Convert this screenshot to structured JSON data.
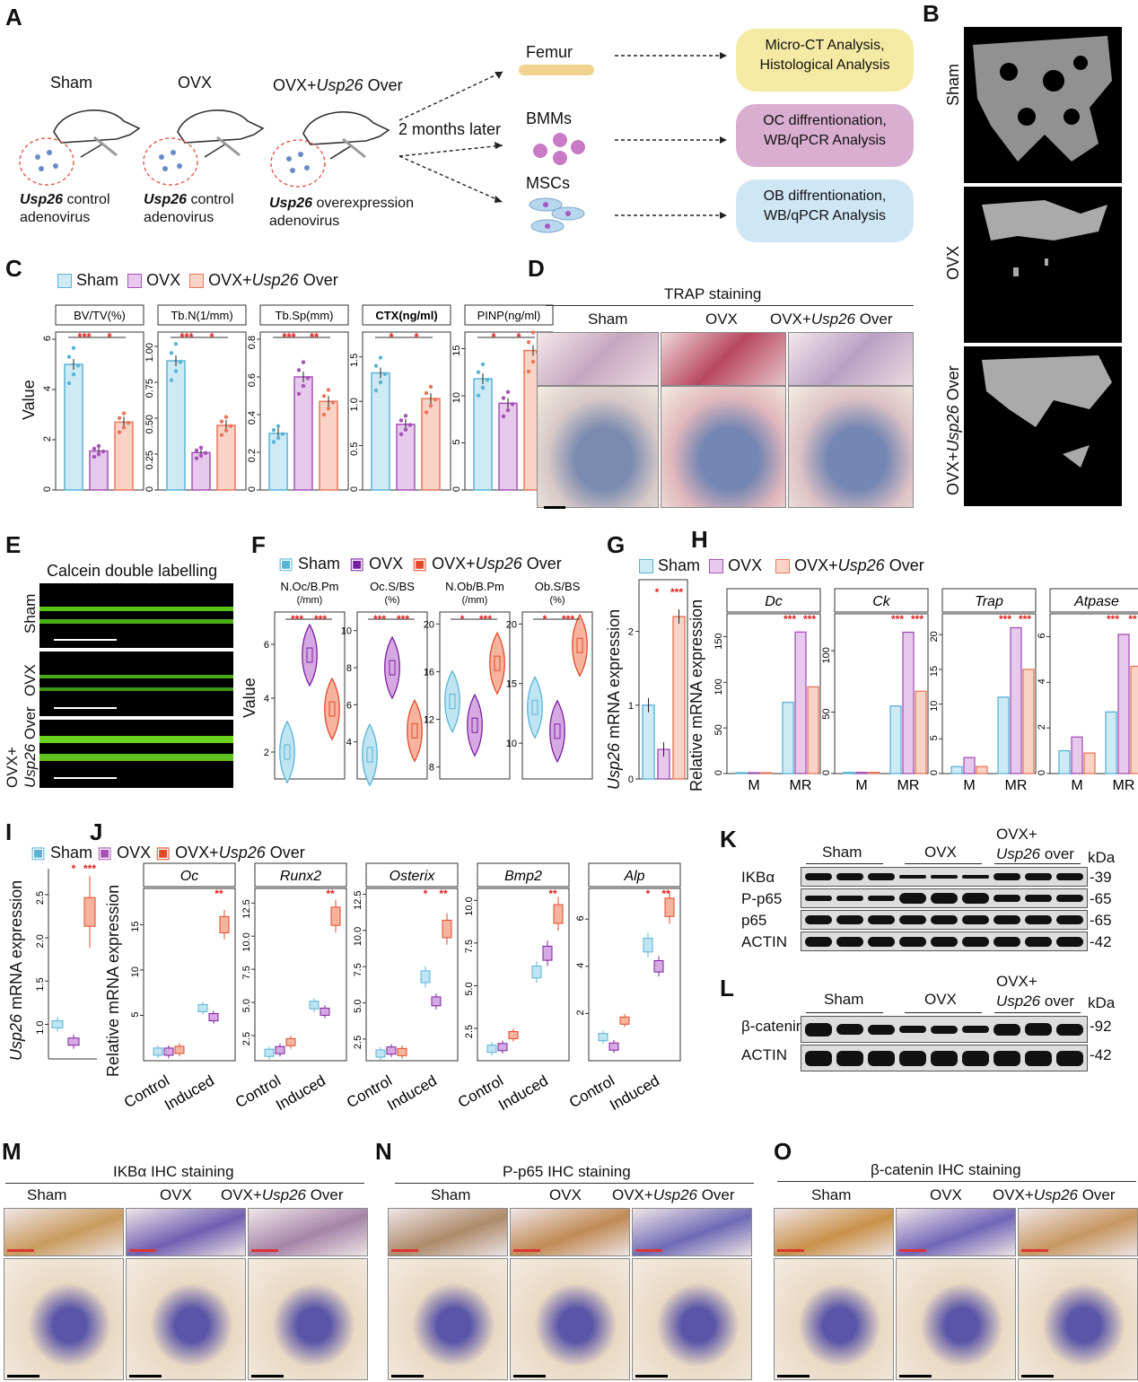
{
  "panel_letters": [
    "A",
    "B",
    "C",
    "D",
    "E",
    "F",
    "G",
    "H",
    "I",
    "J",
    "K",
    "L",
    "M",
    "N",
    "O"
  ],
  "A": {
    "groups": [
      "Sham",
      "OVX",
      "OVX+"
    ],
    "group3_gene": "Usp26",
    "group3_suffix": " Over",
    "adeno_gene": "Usp26",
    "adeno_labels": [
      " control",
      " control",
      " overexpression"
    ],
    "adeno_word": "adenovirus",
    "arrow_text": "2 months later",
    "targets": [
      "Femur",
      "BMMs",
      "MSCs"
    ],
    "outcomes": [
      [
        "Micro-CT Analysis,",
        "Histological Analysis"
      ],
      [
        "OC diffrentionation,",
        "WB/qPCR Analysis"
      ],
      [
        "OB diffrentionation,",
        "WB/qPCR Analysis"
      ]
    ],
    "colors": {
      "yellow": "#f5eaa4",
      "purple": "#d9aed0",
      "blue": "#cfe6f5"
    }
  },
  "B": {
    "labels": [
      "Sham",
      "OVX",
      "OVX+",
      "Usp26",
      " Over"
    ]
  },
  "C": {
    "legend": [
      "Sham",
      "OVX",
      "OVX+",
      "Usp26",
      " Over"
    ],
    "ylabel": "Value",
    "colors": {
      "sham": "#5ab4d6",
      "ovx": "#a552b5",
      "over": "#e8775a",
      "sham_fill": "#cdeaf5",
      "ovx_fill": "#e6c9ec",
      "over_fill": "#f9d3c6"
    },
    "chart_data": [
      {
        "type": "bar",
        "title": "BV/TV(%)",
        "categories": [
          "Sham",
          "OVX",
          "OVX+Usp26 Over"
        ],
        "values": [
          5.0,
          1.55,
          2.7
        ],
        "yticks": [
          "0",
          "2",
          "4",
          "6"
        ],
        "ylim": [
          0,
          6
        ],
        "sig": [
          "***",
          "*"
        ]
      },
      {
        "type": "bar",
        "title": "Tb.N(1/mm)",
        "categories": [
          "Sham",
          "OVX",
          "OVX+Usp26 Over"
        ],
        "values": [
          0.9,
          0.26,
          0.45
        ],
        "yticks": [
          "0",
          "0.25",
          "0.50",
          "0.75",
          "1.00"
        ],
        "ylim": [
          0,
          1.05
        ],
        "sig": [
          "***",
          "*"
        ]
      },
      {
        "type": "bar",
        "title": "Tb.Sp(mm)",
        "categories": [
          "Sham",
          "OVX",
          "OVX+Usp26 Over"
        ],
        "values": [
          0.3,
          0.6,
          0.47
        ],
        "yticks": [
          "0",
          "0.2",
          "0.4",
          "0.6",
          "0.8"
        ],
        "ylim": [
          0,
          0.8
        ],
        "sig": [
          "***",
          "**"
        ]
      },
      {
        "type": "bar",
        "title": "CTX(ng/ml)",
        "categories": [
          "Sham",
          "OVX",
          "OVX+Usp26 Over"
        ],
        "values": [
          1.32,
          0.74,
          1.03
        ],
        "yticks": [
          "0",
          "0.5",
          "1.0",
          "1.5"
        ],
        "ylim": [
          0,
          1.7
        ],
        "sig": [
          "*",
          "*"
        ]
      },
      {
        "type": "bar",
        "title": "PINP(ng/ml)",
        "categories": [
          "Sham",
          "OVX",
          "OVX+Usp26 Over"
        ],
        "values": [
          11.8,
          9.2,
          14.8
        ],
        "yticks": [
          "0",
          "5",
          "10",
          "15"
        ],
        "ylim": [
          0,
          16
        ],
        "sig": [
          "*",
          "*"
        ]
      }
    ]
  },
  "D": {
    "title": "TRAP staining",
    "cols": [
      "Sham",
      "OVX",
      "OVX+",
      "Usp26",
      " Over"
    ]
  },
  "E": {
    "title": "Calcein double labelling",
    "rows": [
      "Sham",
      "OVX",
      "OVX+",
      "Usp26",
      " Over"
    ]
  },
  "F": {
    "legend": [
      "Sham",
      "OVX",
      "OVX+",
      "Usp26",
      " Over"
    ],
    "ylabel": "Value",
    "chart_data": [
      {
        "type": "violin",
        "title": [
          "N.Oc/B.Pm",
          "(/mm)"
        ],
        "medians": [
          2.0,
          5.6,
          3.6
        ],
        "yticks": [
          "2",
          "4",
          "6"
        ],
        "ylim": [
          1,
          7.2
        ],
        "sig": [
          "***",
          "***"
        ]
      },
      {
        "type": "violin",
        "title": [
          "Oc.S/BS",
          "(%)"
        ],
        "medians": [
          3.3,
          8.0,
          4.6
        ],
        "yticks": [
          "4",
          "6",
          "8",
          "10"
        ],
        "ylim": [
          2,
          11
        ],
        "sig": [
          "***",
          "***"
        ]
      },
      {
        "type": "violin",
        "title": [
          "N.Ob/B.Pm",
          "(/mm)"
        ],
        "medians": [
          13.5,
          11.5,
          16.7
        ],
        "yticks": [
          "8",
          "12",
          "16",
          "20"
        ],
        "ylim": [
          7,
          21
        ],
        "sig": [
          "*",
          "***"
        ]
      },
      {
        "type": "violin",
        "title": [
          "Ob.S/BS",
          "(%)"
        ],
        "medians": [
          13.0,
          11.0,
          18.2
        ],
        "yticks": [
          "10",
          "15",
          "20"
        ],
        "ylim": [
          7,
          21
        ],
        "sig": [
          "*",
          "***"
        ]
      }
    ]
  },
  "G": {
    "ylabel_gene": "Usp26",
    "ylabel": " mRNA expression",
    "chart_data": {
      "type": "bar",
      "values": [
        1.0,
        0.4,
        2.2
      ],
      "yticks": [
        "0",
        "1",
        "2"
      ],
      "ylim": [
        0,
        2.7
      ],
      "sig": [
        "*",
        "***"
      ]
    }
  },
  "H": {
    "legend": [
      "Sham",
      "OVX",
      "OVX+",
      "Usp26",
      " Over"
    ],
    "ylabel": "Relative mRNA expression",
    "xcats": [
      "M",
      "MR"
    ],
    "chart_data": [
      {
        "type": "bar",
        "title": "Dc",
        "M": [
          1,
          1,
          1
        ],
        "MR": [
          78,
          155,
          95
        ],
        "yticks": [
          "0",
          "50",
          "100",
          "150"
        ],
        "ylim": [
          0,
          175
        ],
        "sig": [
          "***",
          "***"
        ]
      },
      {
        "type": "bar",
        "title": "Ck",
        "M": [
          1,
          1,
          1
        ],
        "MR": [
          55,
          115,
          67
        ],
        "yticks": [
          "0",
          "50",
          "100"
        ],
        "ylim": [
          0,
          130
        ],
        "sig": [
          "***",
          "***"
        ]
      },
      {
        "type": "bar",
        "title": "Trap",
        "M": [
          1,
          2.3,
          1
        ],
        "MR": [
          11,
          21,
          15
        ],
        "yticks": [
          "0",
          "5",
          "10",
          "15",
          "20"
        ],
        "ylim": [
          0,
          23
        ],
        "sig": [
          "***",
          "***"
        ]
      },
      {
        "type": "bar",
        "title": "Atpase",
        "M": [
          1,
          1.6,
          0.9
        ],
        "MR": [
          2.7,
          6.1,
          4.7
        ],
        "yticks": [
          "0",
          "2",
          "4",
          "6"
        ],
        "ylim": [
          0,
          7
        ],
        "sig": [
          "***",
          "**"
        ]
      }
    ]
  },
  "I": {
    "legend": [
      "Sham",
      "OVX",
      "OVX+",
      "Usp26",
      " Over"
    ],
    "ylabel_gene": "Usp26",
    "ylabel": " mRNA expression",
    "chart_data": {
      "type": "box",
      "values": [
        1.0,
        0.8,
        2.3
      ],
      "yticks": [
        "1.0",
        "1.5",
        "2.0",
        "2.5"
      ],
      "ylim": [
        0.6,
        2.8
      ],
      "sig": [
        "*",
        "***"
      ]
    }
  },
  "J": {
    "ylabel": "Relative mRNA expression",
    "xcats": [
      "Control",
      "Induced"
    ],
    "chart_data": [
      {
        "type": "box",
        "title": "Oc",
        "Control": [
          1.0,
          1.0,
          1.2
        ],
        "Induced": [
          5.8,
          4.8,
          15.0
        ],
        "yticks": [
          "5",
          "10",
          "15"
        ],
        "ylim": [
          0,
          19
        ],
        "sig": [
          "**"
        ]
      },
      {
        "type": "box",
        "title": "Runx2",
        "Control": [
          1.2,
          1.4,
          2.0
        ],
        "Induced": [
          4.8,
          4.3,
          11.5
        ],
        "yticks": [
          "2.5",
          "5.0",
          "7.5",
          "10.0",
          "12.5"
        ],
        "ylim": [
          0.6,
          13.6
        ],
        "sig": [
          "**"
        ]
      },
      {
        "type": "box",
        "title": "Osterix",
        "Control": [
          1.5,
          1.7,
          1.6
        ],
        "Induced": [
          6.8,
          5.1,
          10.1
        ],
        "yticks": [
          "2.5",
          "5.0",
          "7.5",
          "10.0",
          "12.5"
        ],
        "ylim": [
          1,
          12.9
        ],
        "sig": [
          "*",
          "**"
        ]
      },
      {
        "type": "box",
        "title": "Bmp2",
        "Control": [
          1.3,
          1.4,
          2.1
        ],
        "Induced": [
          5.8,
          6.9,
          9.2
        ],
        "yticks": [
          "2.5",
          "5.0",
          "7.5",
          "10.0"
        ],
        "ylim": [
          0.6,
          10.7
        ],
        "sig": [
          "**"
        ]
      },
      {
        "type": "box",
        "title": "Alp",
        "Control": [
          1.0,
          0.6,
          1.7
        ],
        "Induced": [
          4.9,
          4.0,
          6.5
        ],
        "yticks": [
          "2",
          "4",
          "6"
        ],
        "ylim": [
          0,
          7.3
        ],
        "sig": [
          "*",
          "**"
        ]
      }
    ]
  },
  "K": {
    "groups": [
      "Sham",
      "OVX",
      "OVX+"
    ],
    "group3_line2": "Usp26",
    " group3_line2_suffix": " over",
    "kda": "kDa",
    "rows": [
      "IKBα",
      "P-p65",
      "p65",
      "ACTIN"
    ],
    "sizes": [
      "-39",
      "-65",
      "-65",
      "-42"
    ]
  },
  "L": {
    "groups": [
      "Sham",
      "OVX",
      "OVX+"
    ],
    "group3_line2": "Usp26",
    "kda": "kDa",
    "rows": [
      "β-catenin",
      "ACTIN"
    ],
    "sizes": [
      "-92",
      "-42"
    ]
  },
  "M": {
    "title": "IKBα IHC staining",
    "cols": [
      "Sham",
      "OVX",
      "OVX+",
      "Usp26",
      " Over"
    ]
  },
  "N": {
    "title": "P-p65 IHC staining",
    "cols": [
      "Sham",
      "OVX",
      "OVX+",
      "Usp26",
      " Over"
    ]
  },
  "O": {
    "title": "β-catenin IHC staining",
    "cols": [
      "Sham",
      "OVX",
      "OVX+",
      "Usp26",
      " Over"
    ]
  }
}
